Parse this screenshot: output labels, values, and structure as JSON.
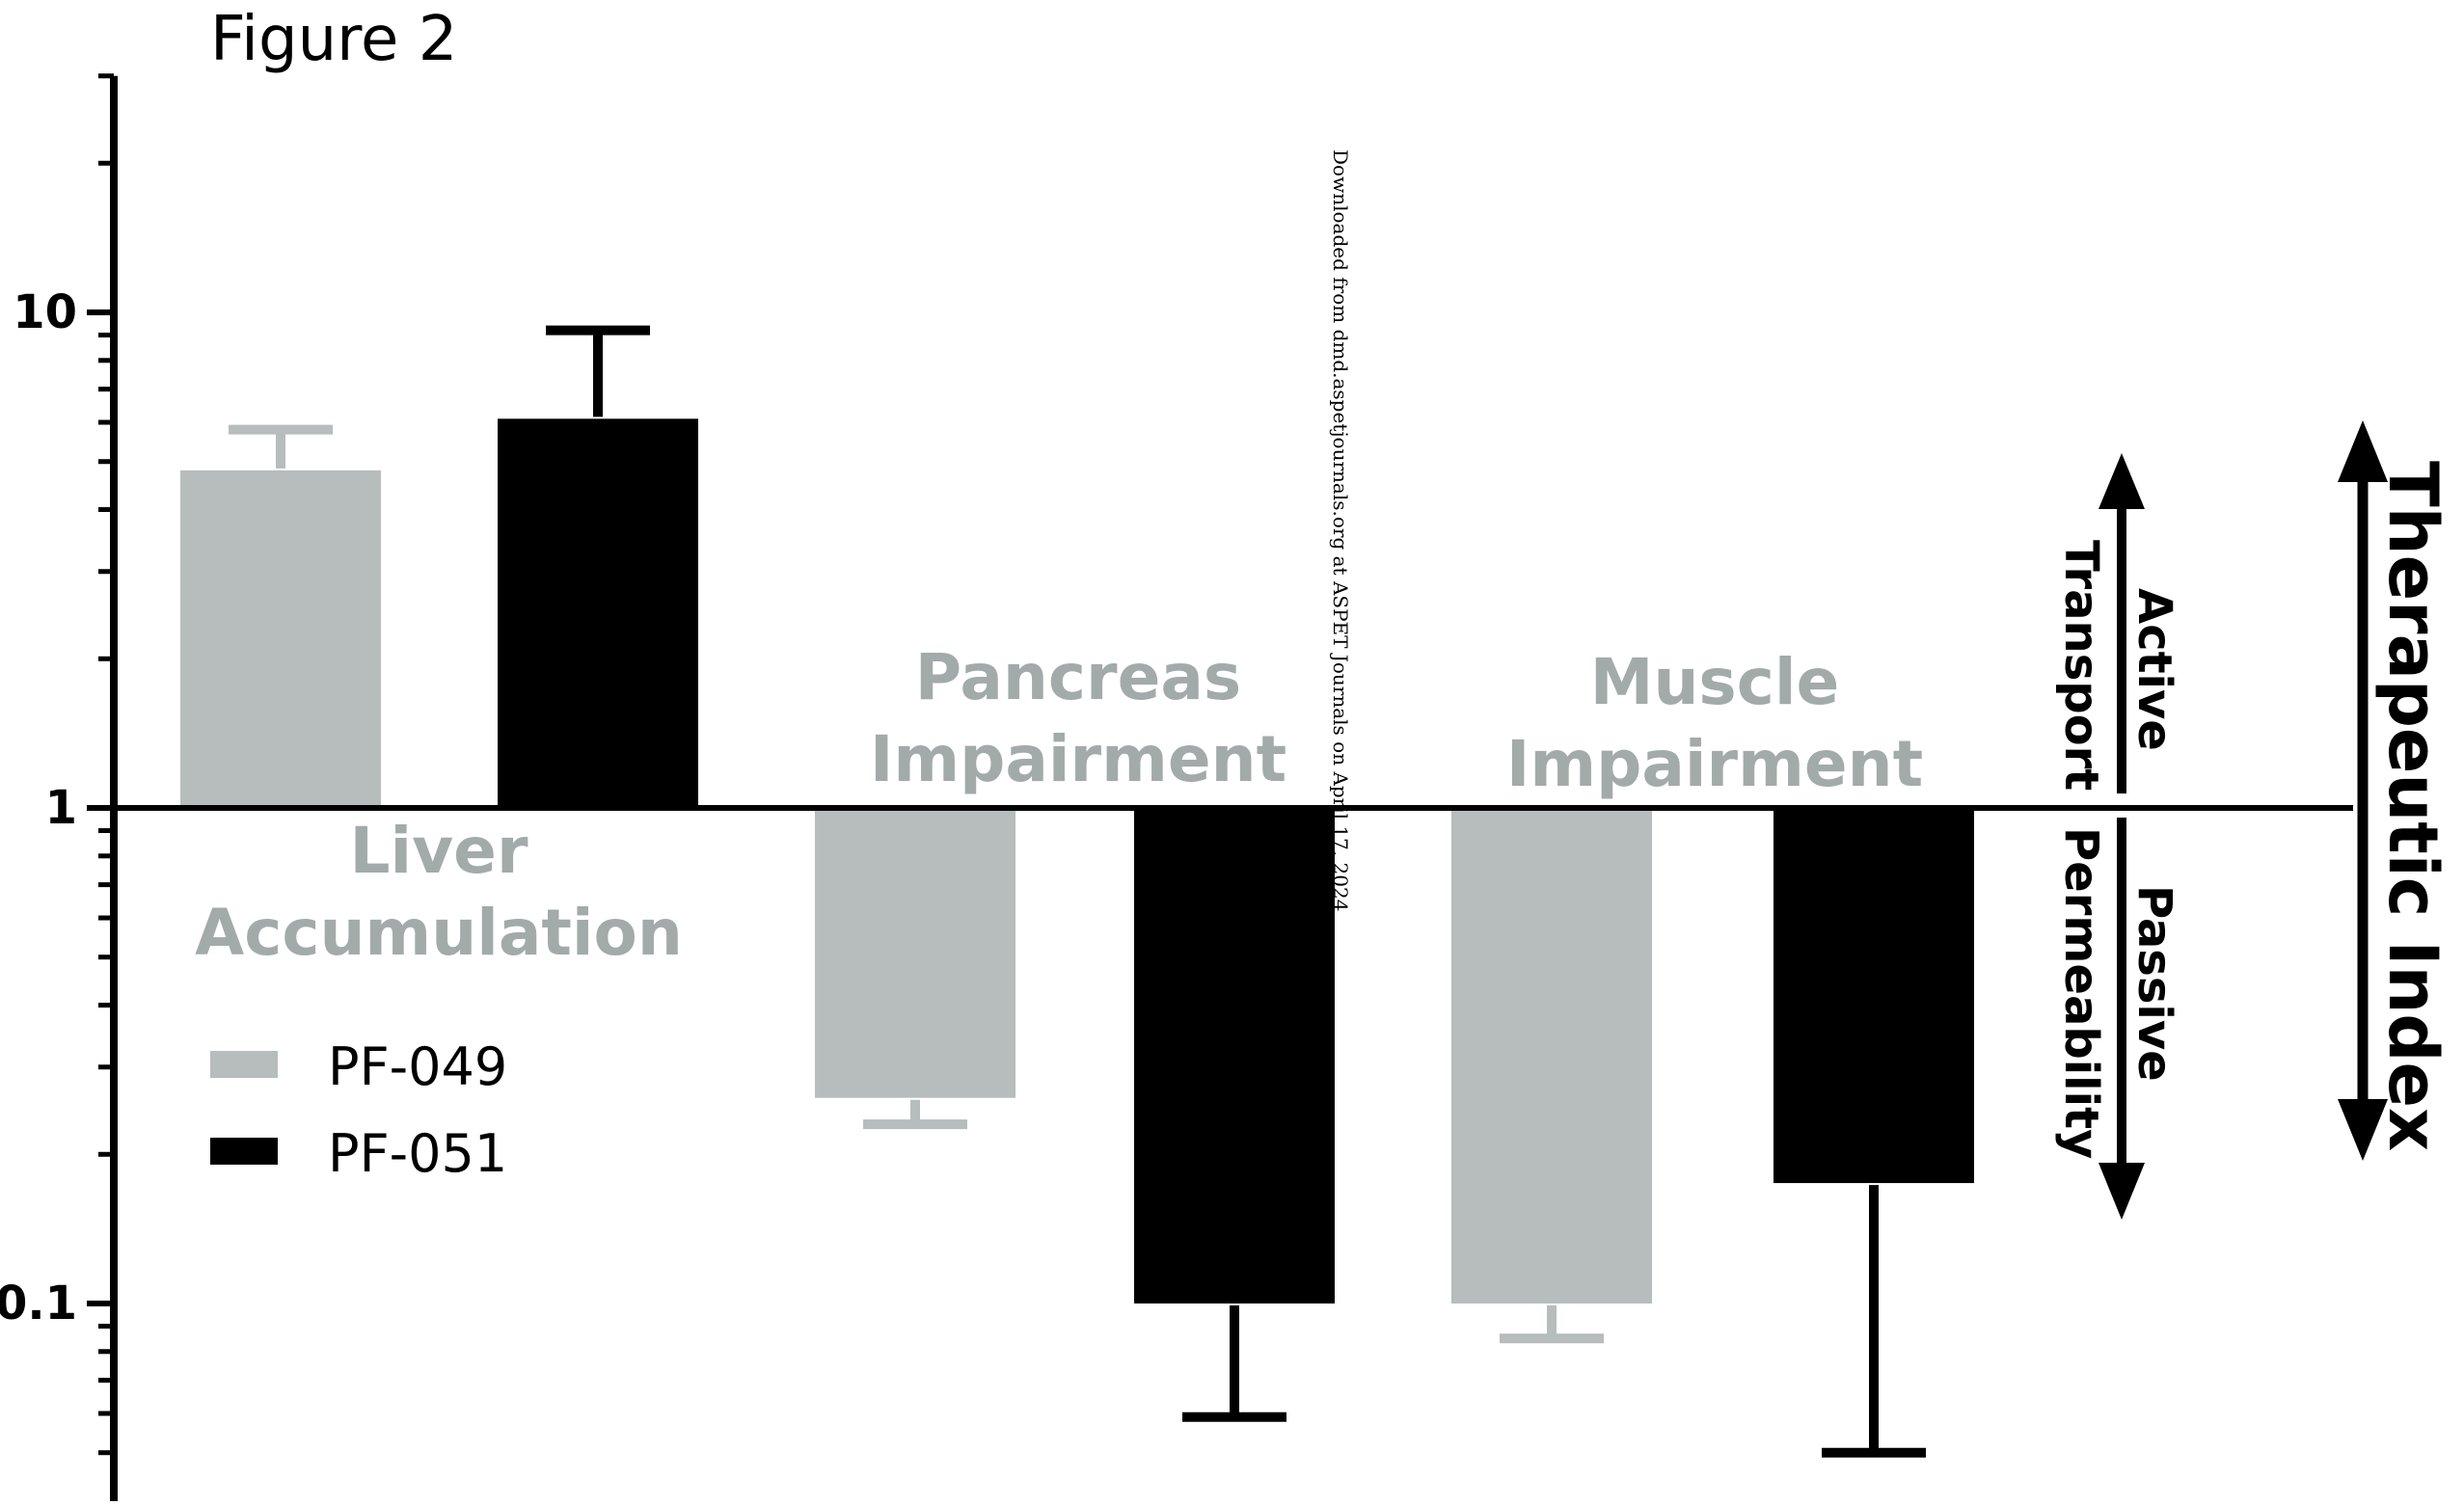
{
  "figure_label": "Figure 2",
  "watermark": "Downloaded from dmd.aspetjournals.org at ASPET Journals on April 17, 2024",
  "colors": {
    "PF-049": "#b7bcbd",
    "PF-051": "#000000",
    "group_label": "#a3aaaa",
    "axis": "#000000"
  },
  "chart_data": {
    "type": "bar",
    "y_scale": "log",
    "ylim": [
      0.05,
      30
    ],
    "baseline": 1,
    "yticks": [
      {
        "value": 0.1,
        "label": "0.1"
      },
      {
        "value": 1,
        "label": "1"
      },
      {
        "value": 10,
        "label": "10"
      }
    ],
    "categories": [
      "Liver Accumulation",
      "Pancreas Impairment",
      "Muscle Impairment"
    ],
    "category_labels": [
      [
        "Liver",
        "Accumulation"
      ],
      [
        "Pancreas",
        "Impairment"
      ],
      [
        "Muscle",
        "Impairment"
      ]
    ],
    "series": [
      {
        "name": "PF-049",
        "values": [
          4.8,
          0.26,
          0.1
        ],
        "error_end": [
          5.8,
          0.23,
          0.085
        ]
      },
      {
        "name": "PF-051",
        "values": [
          6.1,
          0.1,
          0.175
        ],
        "error_end": [
          9.2,
          0.059,
          0.05
        ]
      }
    ],
    "legend": {
      "position": "left",
      "entries": [
        "PF-049",
        "PF-051"
      ]
    },
    "annotations": {
      "up_arrow_label": [
        "Active",
        "Transport"
      ],
      "down_arrow_label": [
        "Passive",
        "Permeability"
      ],
      "side_arrow_label": "Therapeutic Index"
    },
    "grid": false
  }
}
